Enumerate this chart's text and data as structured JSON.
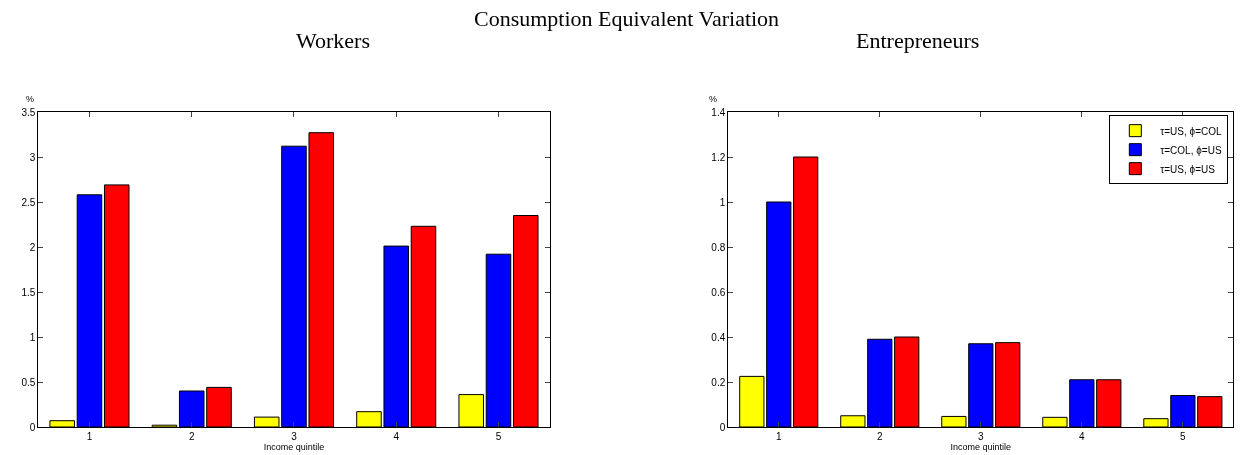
{
  "chart_data": [
    {
      "type": "bar",
      "title": "Workers",
      "annotations": [
        "Consumption Equivalent Variation"
      ],
      "xlabel": "Income quintile",
      "ylabel": "%",
      "categories": [
        "1",
        "2",
        "3",
        "4",
        "5"
      ],
      "series": [
        {
          "color": "#ffff00",
          "values": [
            0.07,
            0.02,
            0.11,
            0.17,
            0.36
          ]
        },
        {
          "color": "#0000ff",
          "values": [
            2.58,
            0.4,
            3.12,
            2.01,
            1.92
          ]
        },
        {
          "color": "#ff0000",
          "values": [
            2.69,
            0.44,
            3.27,
            2.23,
            2.35
          ]
        }
      ],
      "ylim": [
        0,
        3.5
      ],
      "yticks": [
        0,
        0.5,
        1,
        1.5,
        2,
        2.5,
        3,
        3.5
      ],
      "legend": false
    },
    {
      "type": "bar",
      "title": "Entrepreneurs",
      "xlabel": "Income quintile",
      "ylabel": "%",
      "categories": [
        "1",
        "2",
        "3",
        "4",
        "5"
      ],
      "series": [
        {
          "name": "τ=US, ϕ=COL",
          "color": "#ffff00",
          "values": [
            0.225,
            0.05,
            0.047,
            0.043,
            0.037
          ]
        },
        {
          "name": "τ=COL, ϕ=US",
          "color": "#0000ff",
          "values": [
            1.0,
            0.39,
            0.37,
            0.21,
            0.14
          ]
        },
        {
          "name": "τ=US, ϕ=US",
          "color": "#ff0000",
          "values": [
            1.2,
            0.4,
            0.375,
            0.21,
            0.135
          ]
        }
      ],
      "ylim": [
        0,
        1.4
      ],
      "yticks": [
        0,
        0.2,
        0.4,
        0.6,
        0.8,
        1,
        1.2,
        1.4
      ],
      "legend": "top right"
    }
  ]
}
